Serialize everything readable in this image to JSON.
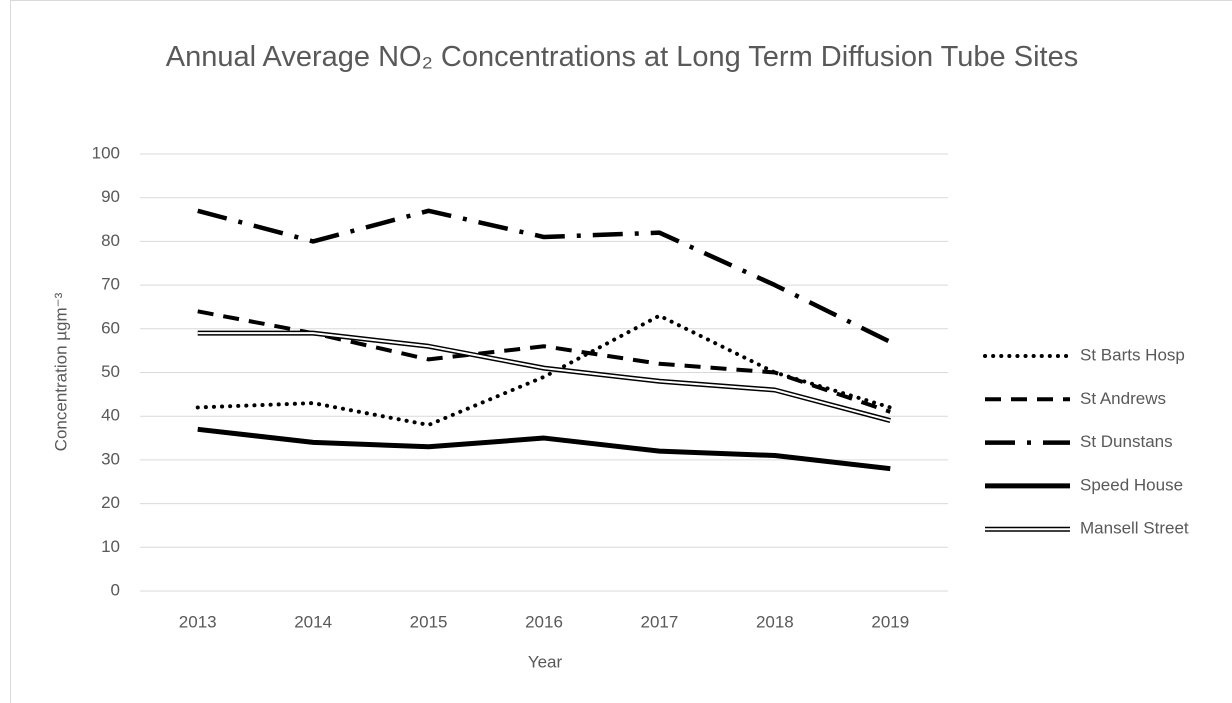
{
  "chart_data": {
    "type": "line",
    "title": "Annual Average NO₂ Concentrations at Long Term Diffusion Tube Sites",
    "x_label": "Year",
    "y_label": "Concentration µgm⁻³",
    "categories": [
      "2013",
      "2014",
      "2015",
      "2016",
      "2017",
      "2018",
      "2019"
    ],
    "series": [
      {
        "name": "St Barts Hosp",
        "color": "#000000",
        "style": "dotted",
        "values": [
          42,
          43,
          38,
          49,
          63,
          50,
          42
        ]
      },
      {
        "name": "St Andrews",
        "color": "#000000",
        "style": "dashed",
        "values": [
          64,
          59,
          53,
          56,
          52,
          50,
          41
        ]
      },
      {
        "name": "St Dunstans",
        "color": "#000000",
        "style": "long-dash-dot",
        "values": [
          87,
          80,
          87,
          81,
          82,
          70,
          57
        ]
      },
      {
        "name": "Speed House",
        "color": "#000000",
        "style": "solid",
        "values": [
          37,
          34,
          33,
          35,
          32,
          31,
          28
        ]
      },
      {
        "name": "Mansell Street",
        "color": "#000000",
        "style": "double",
        "values": [
          59,
          59,
          56,
          51,
          48,
          46,
          39
        ]
      }
    ],
    "ylim": [
      0,
      100
    ],
    "yticks": [
      0,
      10,
      20,
      30,
      40,
      50,
      60,
      70,
      80,
      90,
      100
    ],
    "grid": true,
    "legend": "right"
  }
}
